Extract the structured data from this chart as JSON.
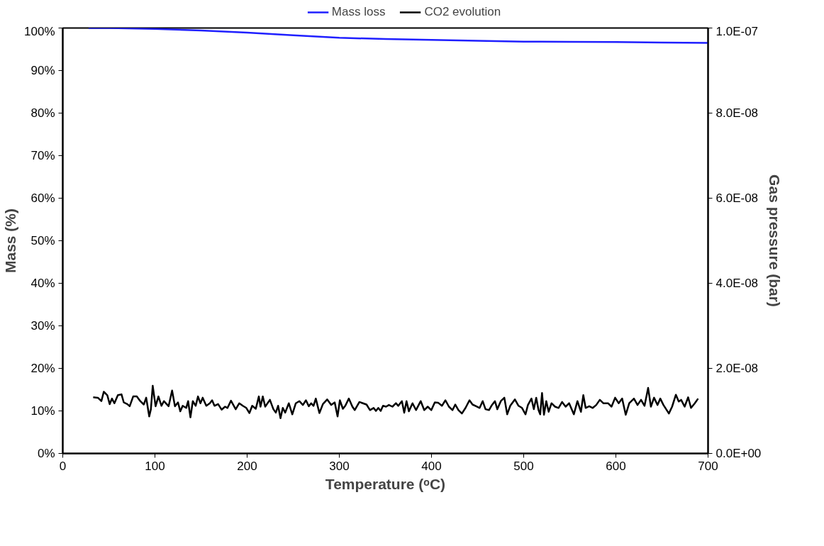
{
  "chart_data": {
    "type": "line",
    "xlabel": "Temperature (ᵒC)",
    "ylabel": "Mass (%)",
    "y2label": "Gas pressure (bar)",
    "xlim": [
      0,
      700
    ],
    "xticks": [
      0,
      100,
      200,
      300,
      400,
      500,
      600,
      700
    ],
    "ylim": [
      0,
      100
    ],
    "yticks": [
      {
        "value": 0,
        "label": "0%"
      },
      {
        "value": 10,
        "label": "10%"
      },
      {
        "value": 20,
        "label": "20%"
      },
      {
        "value": 30,
        "label": "30%"
      },
      {
        "value": 40,
        "label": "40%"
      },
      {
        "value": 50,
        "label": "50%"
      },
      {
        "value": 60,
        "label": "60%"
      },
      {
        "value": 70,
        "label": "70%"
      },
      {
        "value": 80,
        "label": "80%"
      },
      {
        "value": 90,
        "label": "90%"
      },
      {
        "value": 100,
        "label": "100%"
      }
    ],
    "y2lim": [
      0,
      1e-07
    ],
    "y2ticks": [
      {
        "value": 0,
        "label": "0.0E+00"
      },
      {
        "value": 2e-08,
        "label": "2.0E-08"
      },
      {
        "value": 4e-08,
        "label": "4.0E-08"
      },
      {
        "value": 6e-08,
        "label": "6.0E-08"
      },
      {
        "value": 8e-08,
        "label": "8.0E-08"
      },
      {
        "value": 1e-07,
        "label": "1.0E-07"
      }
    ],
    "grid": false,
    "legend": "top",
    "marker": "none",
    "line_style": "solid",
    "series": [
      {
        "name": "Mass loss",
        "color": "#1f1fff",
        "x": [
          28,
          50,
          100,
          150,
          200,
          250,
          300,
          350,
          400,
          450,
          500,
          550,
          600,
          650,
          700
        ],
        "values": [
          100,
          100,
          99.8,
          99.4,
          98.9,
          98.3,
          97.7,
          97.4,
          97.2,
          97.0,
          96.8,
          96.75,
          96.7,
          96.6,
          96.5
        ]
      },
      {
        "name": "CO2 evolution",
        "color": "#000000",
        "axis": "y2",
        "x": [
          33.0,
          38.1,
          41.9,
          44.5,
          48.3,
          50.9,
          53.4,
          56.0,
          59.8,
          63.7,
          66.2,
          70.0,
          72.6,
          76.4,
          80.3,
          84.1,
          87.9,
          90.5,
          93.8,
          95.6,
          97.6,
          100.7,
          103.8,
          107.1,
          109.7,
          114.8,
          118.6,
          121.7,
          125.0,
          127.5,
          130.1,
          133.9,
          136.0,
          138.5,
          141.1,
          144.2,
          146.7,
          149.3,
          151.8,
          155.7,
          159.5,
          162.0,
          164.6,
          168.5,
          172.3,
          176.1,
          178.7,
          182.5,
          187.6,
          191.5,
          195.3,
          199.1,
          202.5,
          205.5,
          209.4,
          212.7,
          214.5,
          217.0,
          219.6,
          224.7,
          228.5,
          231.1,
          233.6,
          236.2,
          238.7,
          241.3,
          245.2,
          249.0,
          252.8,
          256.6,
          260.5,
          263.8,
          266.9,
          269.4,
          272.0,
          274.5,
          278.4,
          282.2,
          286.8,
          291.2,
          295.0,
          298.1,
          300.6,
          303.9,
          306.5,
          310.3,
          314.2,
          316.7,
          321.8,
          325.7,
          329.5,
          333.3,
          337.2,
          339.7,
          342.3,
          344.9,
          347.4,
          350.7,
          353.8,
          357.6,
          361.4,
          364.0,
          367.9,
          370.4,
          372.9,
          375.5,
          379.4,
          383.2,
          388.3,
          392.1,
          395.9,
          399.8,
          403.6,
          407.4,
          411.3,
          415.1,
          418.9,
          422.8,
          425.8,
          429.2,
          433.0,
          436.9,
          441.2,
          444.5,
          448.4,
          452.2,
          455.5,
          458.6,
          462.4,
          465.0,
          468.8,
          471.4,
          475.2,
          479.0,
          482.1,
          485.4,
          490.5,
          494.4,
          498.2,
          502.0,
          504.6,
          508.4,
          511.0,
          513.6,
          516.1,
          517.9,
          519.9,
          522.0,
          524.5,
          527.1,
          530.2,
          534.0,
          537.8,
          541.7,
          545.5,
          549.3,
          554.4,
          558.3,
          562.1,
          564.7,
          567.2,
          571.1,
          574.9,
          578.7,
          582.6,
          586.4,
          591.5,
          595.3,
          599.2,
          603.0,
          606.8,
          610.7,
          614.5,
          619.6,
          623.5,
          627.3,
          631.1,
          635.0,
          638.0,
          641.4,
          645.2,
          648.2,
          651.6,
          657.5,
          661.0,
          665.1,
          668.2,
          670.8,
          674.6,
          678.4,
          681.5,
          685.6,
          689.2
        ],
        "values": [
          1.32e-08,
          1.31e-08,
          1.23e-08,
          1.45e-08,
          1.37e-08,
          1.16e-08,
          1.29e-08,
          1.18e-08,
          1.37e-08,
          1.39e-08,
          1.2e-08,
          1.16e-08,
          1.11e-08,
          1.34e-08,
          1.34e-08,
          1.23e-08,
          1.15e-08,
          1.31e-08,
          8.7e-09,
          1.04e-08,
          1.59e-08,
          1.11e-08,
          1.34e-08,
          1.12e-08,
          1.23e-08,
          1.11e-08,
          1.48e-08,
          1.11e-08,
          1.2e-08,
          9.9e-09,
          1.12e-08,
          1.07e-08,
          1.23e-08,
          8.5e-09,
          1.23e-08,
          1.12e-08,
          1.34e-08,
          1.18e-08,
          1.31e-08,
          1.12e-08,
          1.18e-08,
          1.25e-08,
          1.12e-08,
          1.16e-08,
          1.03e-08,
          1.1e-08,
          1.07e-08,
          1.24e-08,
          1.04e-08,
          1.18e-08,
          1.12e-08,
          1.07e-08,
          9.5e-09,
          1.12e-08,
          1.05e-08,
          1.34e-08,
          1.1e-08,
          1.34e-08,
          1.1e-08,
          1.26e-08,
          1.04e-08,
          9.6e-09,
          1.12e-08,
          8.3e-09,
          1.07e-08,
          9.6e-09,
          1.18e-08,
          9.2e-09,
          1.18e-08,
          1.23e-08,
          1.14e-08,
          1.25e-08,
          1.11e-08,
          1.18e-08,
          1.12e-08,
          1.29e-08,
          9.5e-09,
          1.16e-08,
          1.27e-08,
          1.14e-08,
          1.2e-08,
          8.7e-09,
          1.25e-08,
          1.05e-08,
          1.12e-08,
          1.29e-08,
          1.1e-08,
          1.02e-08,
          1.21e-08,
          1.18e-08,
          1.15e-08,
          1.02e-08,
          1.07e-08,
          1e-08,
          1.07e-08,
          1e-08,
          1.12e-08,
          1.1e-08,
          1.14e-08,
          1.1e-08,
          1.18e-08,
          1.12e-08,
          1.23e-08,
          9.6e-09,
          1.23e-08,
          9.9e-09,
          1.18e-08,
          1.02e-08,
          1.23e-08,
          1.02e-08,
          1.1e-08,
          1.02e-08,
          1.2e-08,
          1.19e-08,
          1.12e-08,
          1.25e-08,
          1.1e-08,
          1.02e-08,
          1.15e-08,
          1.02e-08,
          9.4e-09,
          1.07e-08,
          1.25e-08,
          1.15e-08,
          1.11e-08,
          1.07e-08,
          1.23e-08,
          1.04e-08,
          1.02e-08,
          1.12e-08,
          1.23e-08,
          1.04e-08,
          1.23e-08,
          1.31e-08,
          9.2e-09,
          1.12e-08,
          1.27e-08,
          1.12e-08,
          1.07e-08,
          9.2e-09,
          1.14e-08,
          1.29e-08,
          1.04e-08,
          1.31e-08,
          1.02e-08,
          9.2e-09,
          1.42e-08,
          9.1e-09,
          1.23e-08,
          9.8e-09,
          1.18e-08,
          1.1e-08,
          1.07e-08,
          1.21e-08,
          1.1e-08,
          1.18e-08,
          9.2e-09,
          1.23e-08,
          9.8e-09,
          1.37e-08,
          1.07e-08,
          1.11e-08,
          1.07e-08,
          1.14e-08,
          1.26e-08,
          1.18e-08,
          1.18e-08,
          1.1e-08,
          1.31e-08,
          1.18e-08,
          1.29e-08,
          9.1e-09,
          1.18e-08,
          1.29e-08,
          1.14e-08,
          1.26e-08,
          1.12e-08,
          1.54e-08,
          1.1e-08,
          1.31e-08,
          1.14e-08,
          1.29e-08,
          1.14e-08,
          9.4e-09,
          1.1e-08,
          1.38e-08,
          1.22e-08,
          1.26e-08,
          1.1e-08,
          1.32e-08,
          1.07e-08,
          1.18e-08,
          1.29e-08
        ]
      }
    ]
  }
}
